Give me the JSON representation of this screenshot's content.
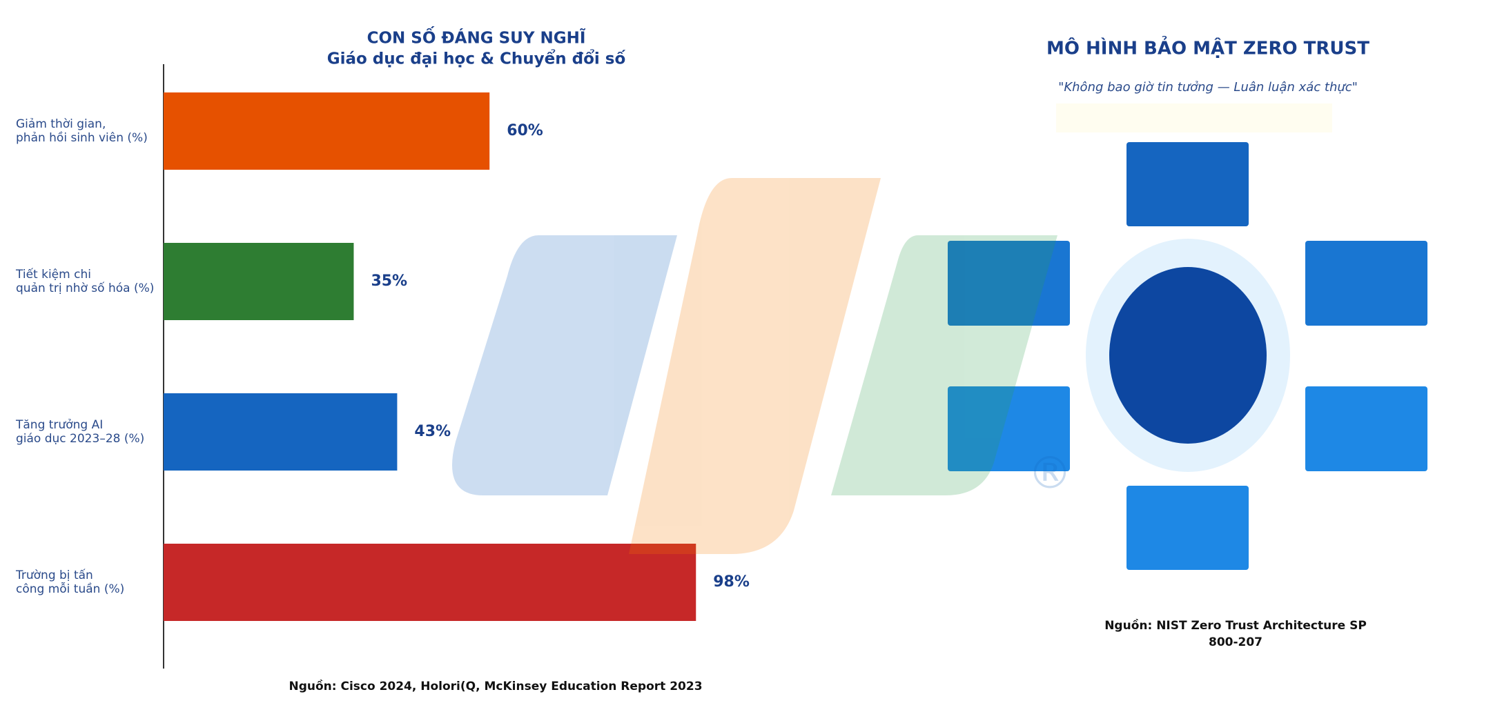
{
  "chart_data": {
    "type": "bar",
    "orientation": "horizontal",
    "title": [
      "CON SỐ ĐÁNG SUY NGHĨ",
      "Giáo dục đại học & Chuyển đổi số"
    ],
    "categories": [
      "Giảm thời gian,\nphản hồi sinh viên (%)",
      "Tiết kiệm chi\nquản trị nhờ số hóa (%)",
      "Tăng trưởng AI\ngiáo dục 2023–28 (%)",
      "Trường bị tấn\ncông mỗi tuần (%)"
    ],
    "values": [
      60,
      35,
      43,
      98
    ],
    "value_labels": [
      "60%",
      "35%",
      "43%",
      "98%"
    ],
    "colors": [
      "#e65100",
      "#2e7d32",
      "#1565c0",
      "#c62828"
    ],
    "source": "Nguồn: Cisco 2024, Holori(Q, McKinsey Education Report 2023"
  },
  "diagram": {
    "title": "MÔ HÌNH BẢO MẬT ZERO TRUST",
    "subtitle": "\"Không bao giờ tin tưởng — Luân luận xác thực\"",
    "source": [
      "Nguồn: NIST Zero Trust Architecture SP",
      "800-207"
    ]
  },
  "watermark": {
    "mark": "®"
  }
}
